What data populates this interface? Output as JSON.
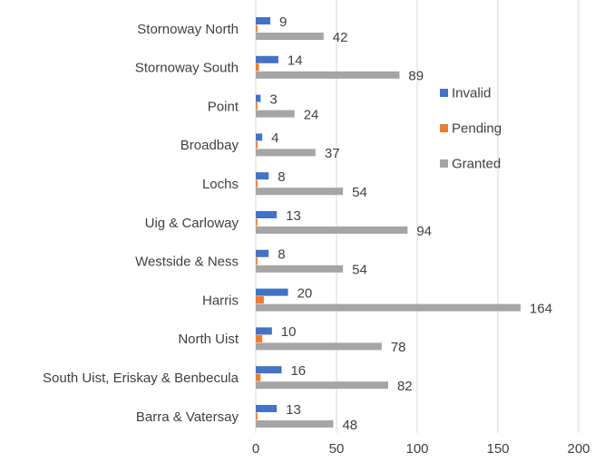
{
  "chart_data": {
    "type": "bar",
    "orientation": "horizontal",
    "categories": [
      "Stornoway North",
      "Stornoway South",
      "Point",
      "Broadbay",
      "Lochs",
      "Uig & Carloway",
      "Westside & Ness",
      "Harris",
      "North Uist",
      "South Uist, Eriskay & Benbecula",
      "Barra & Vatersay"
    ],
    "series": [
      {
        "name": "Invalid",
        "color": "#4472c4",
        "values": [
          9,
          14,
          3,
          4,
          8,
          13,
          8,
          20,
          10,
          16,
          13
        ],
        "labels_shown": true
      },
      {
        "name": "Pending",
        "color": "#ed7d31",
        "values": [
          1,
          2,
          1,
          1,
          1,
          1,
          1,
          5,
          4,
          3,
          1
        ],
        "labels_shown": false
      },
      {
        "name": "Granted",
        "color": "#a5a5a5",
        "values": [
          42,
          89,
          24,
          37,
          54,
          94,
          54,
          164,
          78,
          82,
          48
        ],
        "labels_shown": true
      }
    ],
    "xlim": [
      0,
      200
    ],
    "x_ticks": [
      0,
      50,
      100,
      150,
      200
    ],
    "grid": "vertical",
    "legend": "right",
    "title": "",
    "xlabel": "",
    "ylabel": ""
  }
}
